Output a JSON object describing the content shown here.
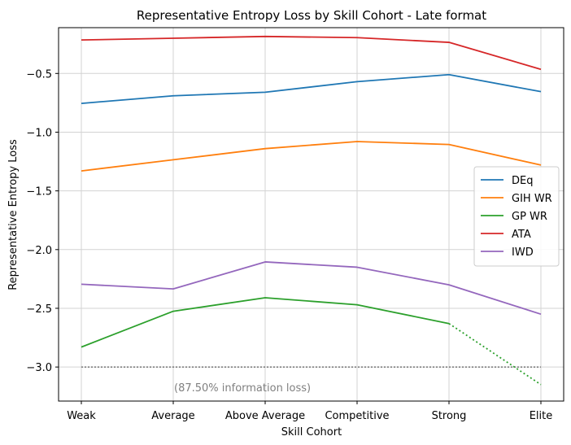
{
  "chart_data": {
    "type": "line",
    "title": "Representative Entropy Loss by Skill Cohort - Late format",
    "xlabel": "Skill Cohort",
    "ylabel": "Representative Entropy Loss",
    "categories": [
      "Weak",
      "Average",
      "Above Average",
      "Competitive",
      "Strong",
      "Elite"
    ],
    "ylim": [
      -3.29,
      -0.11
    ],
    "yticks": [
      -3.0,
      -2.5,
      -2.0,
      -1.5,
      -1.0,
      -0.5
    ],
    "ytick_labels": [
      "−3.0",
      "−2.5",
      "−2.0",
      "−1.5",
      "−1.0",
      "−0.5"
    ],
    "grid": true,
    "legend_position": "right",
    "series": [
      {
        "name": "DEq",
        "color": "#1f77b4",
        "values": [
          -0.755,
          -0.69,
          -0.66,
          -0.57,
          -0.51,
          -0.655
        ]
      },
      {
        "name": "GIH WR",
        "color": "#ff7f0e",
        "values": [
          -1.33,
          -1.235,
          -1.14,
          -1.08,
          -1.105,
          -1.28
        ]
      },
      {
        "name": "GP WR",
        "color": "#2ca02c",
        "values": [
          -2.83,
          -2.525,
          -2.41,
          -2.47,
          -2.63,
          -3.15
        ],
        "dotted_from_index": 4
      },
      {
        "name": "ATA",
        "color": "#d62728",
        "values": [
          -0.215,
          -0.2,
          -0.185,
          -0.195,
          -0.235,
          -0.465
        ]
      },
      {
        "name": "IWD",
        "color": "#9467bd",
        "values": [
          -2.295,
          -2.335,
          -2.105,
          -2.15,
          -2.3,
          -2.55
        ]
      }
    ],
    "reference_line": {
      "y": -3.0,
      "color": "#808080",
      "style": "dotted"
    },
    "annotation": {
      "text": "(87.50% information loss)",
      "color": "#808080"
    }
  }
}
